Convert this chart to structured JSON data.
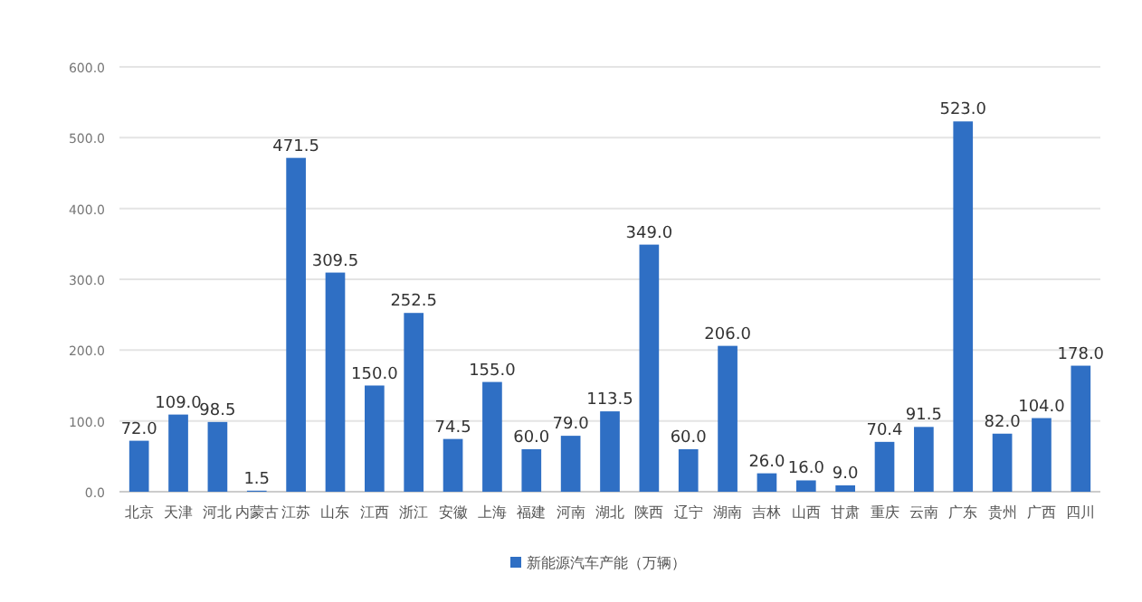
{
  "chart_data": {
    "type": "bar",
    "categories": [
      "北京",
      "天津",
      "河北",
      "内蒙古",
      "江苏",
      "山东",
      "江西",
      "浙江",
      "安徽",
      "上海",
      "福建",
      "河南",
      "湖北",
      "陕西",
      "辽宁",
      "湖南",
      "吉林",
      "山西",
      "甘肃",
      "重庆",
      "云南",
      "广东",
      "贵州",
      "广西",
      "四川"
    ],
    "series": [
      {
        "name": "新能源汽车产能（万辆）",
        "color": "#2f6fc4",
        "values": [
          72.0,
          109.0,
          98.5,
          1.5,
          471.5,
          309.5,
          150.0,
          252.5,
          74.5,
          155.0,
          60.0,
          79.0,
          113.5,
          349.0,
          60.0,
          206.0,
          26.0,
          16.0,
          9.0,
          70.4,
          91.5,
          523.0,
          82.0,
          104.0,
          178.0
        ],
        "value_labels": [
          "72.0",
          "109.0",
          "98.5",
          "1.5",
          "471.5",
          "309.5",
          "150.0",
          "252.5",
          "74.5",
          "155.0",
          "60.0",
          "79.0",
          "113.5",
          "349.0",
          "60.0",
          "206.0",
          "26.0",
          "16.0",
          "9.0",
          "70.4",
          "91.5",
          "523.0",
          "82.0",
          "104.0",
          "178.0"
        ]
      }
    ],
    "ylim": [
      0,
      600
    ],
    "yticks": [
      {
        "value": 0,
        "label": "0.0"
      },
      {
        "value": 100,
        "label": "100.0"
      },
      {
        "value": 200,
        "label": "200.0"
      },
      {
        "value": 300,
        "label": "300.0"
      },
      {
        "value": 400,
        "label": "400.0"
      },
      {
        "value": 500,
        "label": "500.0"
      },
      {
        "value": 600,
        "label": "600.0"
      }
    ],
    "grid": "y",
    "legend": "bottom"
  }
}
